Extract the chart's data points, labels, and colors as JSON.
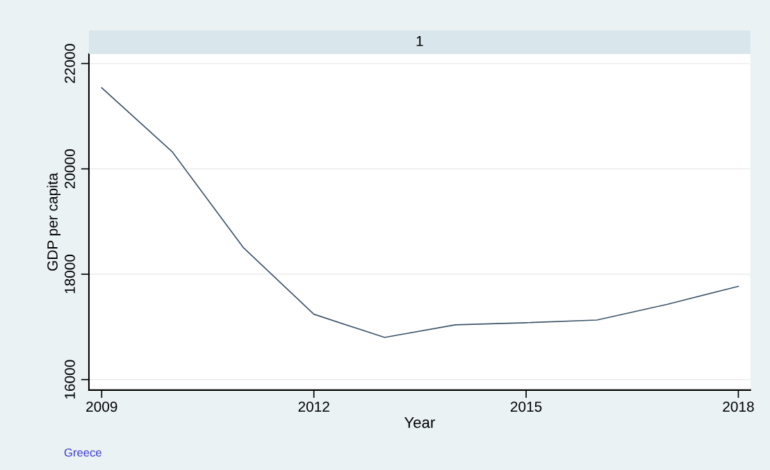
{
  "chart_data": {
    "type": "line",
    "title": "1",
    "xlabel": "Year",
    "ylabel": "GDP per capita",
    "x": [
      2009,
      2010,
      2011,
      2012,
      2013,
      2014,
      2015,
      2016,
      2017,
      2018
    ],
    "series": [
      {
        "color": "#3d5368",
        "values": [
          21540,
          20320,
          18510,
          17240,
          16800,
          17040,
          17080,
          17130,
          17430,
          17770
        ]
      }
    ],
    "xlim": [
      2008.82,
      2018.17
    ],
    "xticks": [
      2009,
      2012,
      2015,
      2018
    ],
    "ylim": [
      15800,
      22180
    ],
    "yticks": [
      16000,
      18000,
      20000,
      22000
    ],
    "grid": "y",
    "legend": false,
    "marker": "none",
    "line_style": "solid",
    "annotations": [
      "Greece"
    ]
  }
}
